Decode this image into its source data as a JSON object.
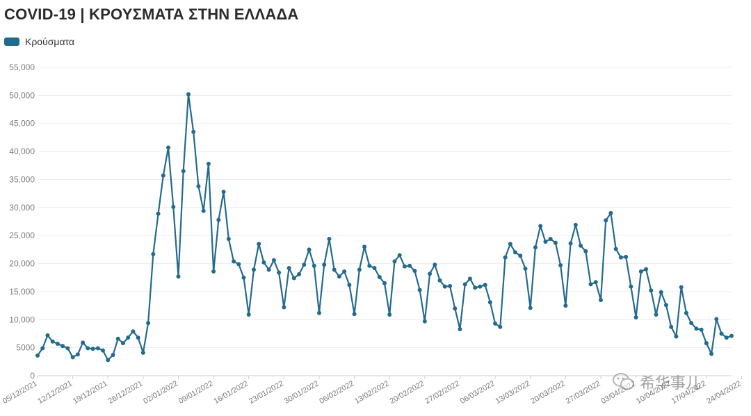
{
  "title": "COVID-19 | ΚΡΟΥΣΜΑΤΑ ΣΤΗΝ ΕΛΛΑΔΑ",
  "colors": {
    "series": "#236a8f",
    "grid": "#ececec",
    "axis": "#cfcfcf"
  },
  "watermark": {
    "text": "希华事儿",
    "icon": "wechat-icon"
  },
  "chart_data": {
    "type": "line",
    "title": "COVID-19 | ΚΡΟΥΣΜΑΤΑ ΣΤΗΝ ΕΛΛΑΔΑ",
    "legend": "top-left",
    "grid": true,
    "ylim": [
      0,
      55000
    ],
    "yticks": [
      "0",
      "5000",
      "10,000",
      "15,000",
      "20,000",
      "25,000",
      "30,000",
      "35,000",
      "40,000",
      "45,000",
      "50,000",
      "55,000"
    ],
    "x_tick_labels": [
      "05/12/2021",
      "12/12/2021",
      "19/12/2021",
      "26/12/2021",
      "02/01/2022",
      "09/01/2022",
      "16/01/2022",
      "23/01/2022",
      "30/01/2022",
      "06/02/2022",
      "13/02/2022",
      "20/02/2022",
      "27/02/2022",
      "06/03/2022",
      "13/03/2022",
      "20/03/2022",
      "27/03/2022",
      "03/04/2022",
      "10/04/2022",
      "17/04/2022",
      "24/04/2022"
    ],
    "series": [
      {
        "name": "Κρούσματα",
        "values": [
          3600,
          4900,
          7200,
          6100,
          5700,
          5300,
          4900,
          3300,
          3800,
          5900,
          4900,
          4800,
          4900,
          4500,
          2800,
          3700,
          6600,
          5800,
          6800,
          7900,
          6800,
          4100,
          9400,
          21700,
          28900,
          35700,
          40700,
          30100,
          17700,
          36500,
          50200,
          43500,
          33800,
          29400,
          37800,
          18600,
          27800,
          32800,
          24400,
          20400,
          19900,
          17500,
          10900,
          18900,
          23500,
          20200,
          18900,
          20600,
          18400,
          12200,
          19200,
          17400,
          18100,
          19800,
          22500,
          19600,
          11200,
          19800,
          24400,
          18900,
          17700,
          18600,
          16200,
          11000,
          18900,
          23000,
          19600,
          19200,
          17600,
          16500,
          10900,
          20400,
          21500,
          19500,
          19600,
          18700,
          15300,
          9700,
          18200,
          19800,
          17000,
          15900,
          16000,
          12000,
          8300,
          16300,
          17300,
          15700,
          15900,
          16200,
          13100,
          9300,
          8700,
          21100,
          23500,
          22000,
          21400,
          19100,
          12100,
          22900,
          26700,
          23900,
          24400,
          23700,
          19700,
          12500,
          23600,
          26900,
          23200,
          22200,
          16300,
          16700,
          13500,
          27700,
          29000,
          22600,
          21100,
          21200,
          15900,
          10400,
          18600,
          19000,
          15200,
          10900,
          14900,
          12600,
          8700,
          7000,
          15800,
          11200,
          9400,
          8400,
          8200,
          5800,
          3900,
          10100,
          7500,
          6800,
          7100
        ]
      }
    ]
  }
}
